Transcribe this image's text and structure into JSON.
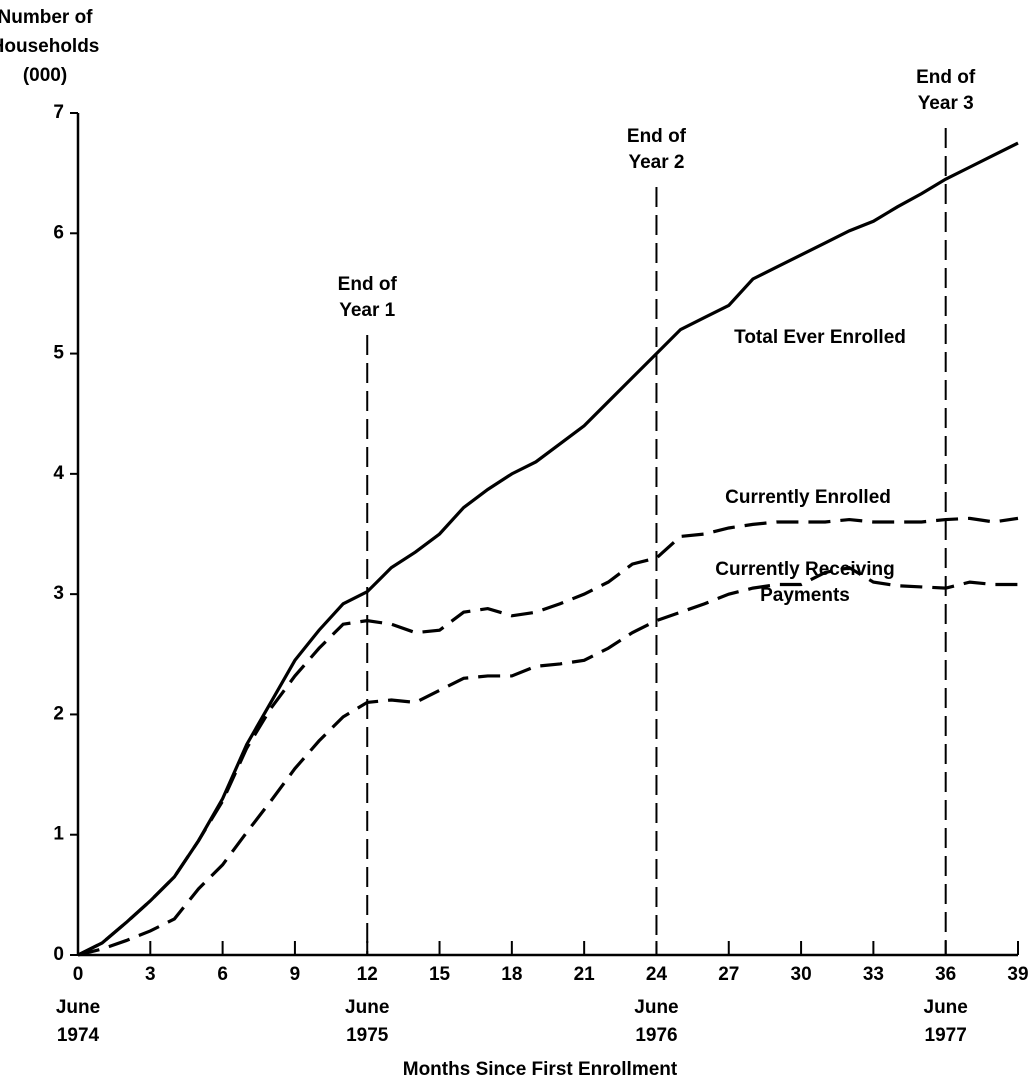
{
  "chart_data": {
    "type": "line",
    "ylabel": [
      "Number of",
      "Households",
      "(000)"
    ],
    "xlabel": "Months Since First Enrollment",
    "x": [
      0,
      1,
      2,
      3,
      4,
      5,
      6,
      7,
      8,
      9,
      10,
      11,
      12,
      13,
      14,
      15,
      16,
      17,
      18,
      19,
      20,
      21,
      22,
      23,
      24,
      25,
      26,
      27,
      28,
      29,
      30,
      31,
      32,
      33,
      34,
      35,
      36,
      37,
      38,
      39
    ],
    "xlim": [
      0,
      39
    ],
    "xticks": [
      0,
      3,
      6,
      9,
      12,
      15,
      18,
      21,
      24,
      27,
      30,
      33,
      36,
      39
    ],
    "ylim": [
      0,
      7
    ],
    "yticks": [
      0,
      1,
      2,
      3,
      4,
      5,
      6,
      7
    ],
    "x_period_labels": [
      {
        "x": 0,
        "month": "June",
        "year": "1974"
      },
      {
        "x": 12,
        "month": "June",
        "year": "1975"
      },
      {
        "x": 24,
        "month": "June",
        "year": "1976"
      },
      {
        "x": 36,
        "month": "June",
        "year": "1977"
      }
    ],
    "annotations": [
      {
        "x": 12,
        "lines": [
          "End of",
          "Year 1"
        ]
      },
      {
        "x": 24,
        "lines": [
          "End of",
          "Year 2"
        ]
      },
      {
        "x": 36,
        "lines": [
          "End of",
          "Year 3"
        ]
      }
    ],
    "series": [
      {
        "name": "Total Ever Enrolled",
        "color": "#000000",
        "dashed": false,
        "values": [
          0,
          0.1,
          0.27,
          0.45,
          0.65,
          0.95,
          1.3,
          1.75,
          2.1,
          2.45,
          2.7,
          2.92,
          3.02,
          3.22,
          3.35,
          3.5,
          3.72,
          3.87,
          4.0,
          4.1,
          4.25,
          4.4,
          4.6,
          4.8,
          5.0,
          5.2,
          5.3,
          5.4,
          5.62,
          5.72,
          5.82,
          5.92,
          6.02,
          6.1,
          6.22,
          6.33,
          6.45,
          6.55,
          6.65,
          6.75
        ]
      },
      {
        "name": "Currently Enrolled",
        "color": "#000000",
        "dashed": true,
        "values": [
          0,
          0.1,
          0.27,
          0.45,
          0.65,
          0.95,
          1.28,
          1.72,
          2.05,
          2.32,
          2.55,
          2.75,
          2.78,
          2.75,
          2.68,
          2.7,
          2.85,
          2.88,
          2.82,
          2.85,
          2.92,
          3.0,
          3.1,
          3.25,
          3.3,
          3.48,
          3.5,
          3.55,
          3.58,
          3.6,
          3.6,
          3.6,
          3.62,
          3.6,
          3.6,
          3.6,
          3.62,
          3.63,
          3.6,
          3.63
        ]
      },
      {
        "name": "Currently Receiving Payments",
        "color": "#000000",
        "dashed": true,
        "values": [
          0,
          0.05,
          0.12,
          0.2,
          0.3,
          0.55,
          0.75,
          1.02,
          1.28,
          1.55,
          1.78,
          1.98,
          2.1,
          2.12,
          2.1,
          2.2,
          2.3,
          2.32,
          2.32,
          2.4,
          2.42,
          2.45,
          2.55,
          2.68,
          2.78,
          2.85,
          2.92,
          3.0,
          3.05,
          3.08,
          3.08,
          3.18,
          3.22,
          3.1,
          3.07,
          3.06,
          3.05,
          3.1,
          3.08,
          3.08
        ]
      }
    ]
  }
}
